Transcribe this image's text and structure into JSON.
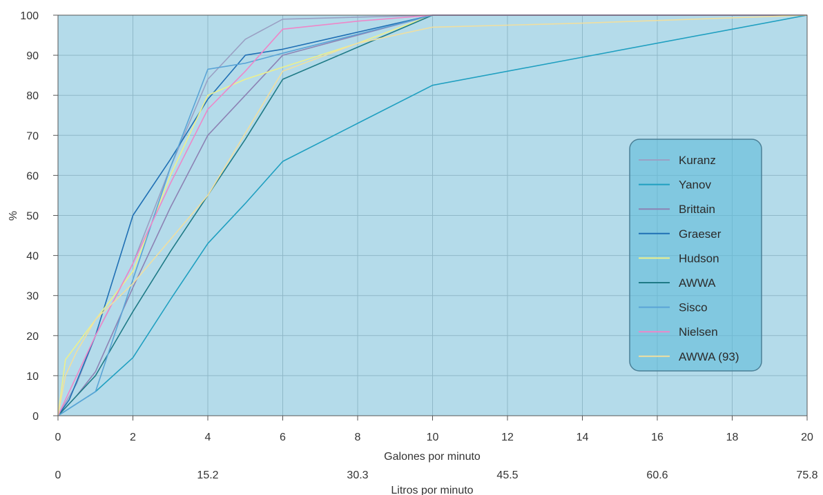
{
  "chart_data": {
    "type": "line",
    "ylabel": "%",
    "xlabel": "Galones por minuto",
    "x2label": "Litros por minuto",
    "xlim": [
      0,
      20
    ],
    "ylim": [
      0,
      100
    ],
    "x_ticks": [
      "0",
      "2",
      "4",
      "6",
      "8",
      "10",
      "12",
      "14",
      "16",
      "18",
      "20"
    ],
    "y_ticks": [
      "0",
      "10",
      "20",
      "30",
      "40",
      "50",
      "60",
      "70",
      "80",
      "90",
      "100"
    ],
    "x2_ticks": [
      {
        "x": 0,
        "label": "0"
      },
      {
        "x": 4,
        "label": "15.2"
      },
      {
        "x": 8,
        "label": "30.3"
      },
      {
        "x": 12,
        "label": "45.5"
      },
      {
        "x": 16,
        "label": "60.6"
      },
      {
        "x": 20,
        "label": "75.8"
      }
    ],
    "grid": true,
    "background": "#b4dbea",
    "legend_position": "right",
    "series": [
      {
        "name": "Kuranz",
        "color": "#9aa0c4",
        "points": [
          [
            0,
            0
          ],
          [
            0.5,
            8
          ],
          [
            1,
            20
          ],
          [
            2,
            38
          ],
          [
            3,
            62
          ],
          [
            4,
            84
          ],
          [
            5,
            94
          ],
          [
            6,
            99
          ],
          [
            10,
            100
          ],
          [
            20,
            100
          ]
        ]
      },
      {
        "name": "Yanov",
        "color": "#1f9fc0",
        "points": [
          [
            0,
            0
          ],
          [
            1,
            6
          ],
          [
            2,
            14.5
          ],
          [
            3,
            29
          ],
          [
            4,
            43
          ],
          [
            5,
            53
          ],
          [
            6,
            63.5
          ],
          [
            8,
            73
          ],
          [
            10,
            82.5
          ],
          [
            14,
            89.5
          ],
          [
            20,
            100
          ]
        ]
      },
      {
        "name": "Brittain",
        "color": "#8c82b4",
        "points": [
          [
            0,
            0
          ],
          [
            0.5,
            5
          ],
          [
            1,
            11
          ],
          [
            2,
            32
          ],
          [
            3,
            52
          ],
          [
            4,
            70
          ],
          [
            5,
            80
          ],
          [
            6,
            90
          ],
          [
            10,
            100
          ],
          [
            20,
            100
          ]
        ]
      },
      {
        "name": "Graeser",
        "color": "#1f6fb4",
        "points": [
          [
            0,
            0
          ],
          [
            0.3,
            4
          ],
          [
            1,
            20
          ],
          [
            2,
            50
          ],
          [
            3,
            64
          ],
          [
            4,
            79
          ],
          [
            5,
            90
          ],
          [
            6,
            91.5
          ],
          [
            10,
            100
          ],
          [
            20,
            100
          ]
        ]
      },
      {
        "name": "Hudson",
        "color": "#eef08a",
        "points": [
          [
            0,
            0
          ],
          [
            0.2,
            14
          ],
          [
            1,
            24
          ],
          [
            2,
            36
          ],
          [
            3,
            60
          ],
          [
            4,
            80
          ],
          [
            5,
            84
          ],
          [
            6,
            87
          ],
          [
            8,
            93
          ],
          [
            10,
            100
          ],
          [
            20,
            100
          ]
        ]
      },
      {
        "name": "AWWA",
        "color": "#1e7a86",
        "points": [
          [
            0,
            0
          ],
          [
            0.5,
            5
          ],
          [
            1,
            10
          ],
          [
            2,
            26
          ],
          [
            3,
            41
          ],
          [
            4,
            55
          ],
          [
            5,
            69
          ],
          [
            6,
            84
          ],
          [
            10,
            100
          ],
          [
            20,
            100
          ]
        ]
      },
      {
        "name": "Sisco",
        "color": "#5aa4d6",
        "points": [
          [
            0,
            0
          ],
          [
            0.5,
            3
          ],
          [
            1,
            6
          ],
          [
            2,
            34
          ],
          [
            3,
            62
          ],
          [
            4,
            86.5
          ],
          [
            5,
            88
          ],
          [
            6,
            90.5
          ],
          [
            10,
            100
          ],
          [
            20,
            100
          ]
        ]
      },
      {
        "name": "Nielsen",
        "color": "#ee86c8",
        "points": [
          [
            0,
            0
          ],
          [
            1,
            20
          ],
          [
            2,
            38
          ],
          [
            3,
            58
          ],
          [
            4,
            76.5
          ],
          [
            5,
            86
          ],
          [
            6,
            96.5
          ],
          [
            8,
            98.5
          ],
          [
            10,
            100
          ],
          [
            20,
            100
          ]
        ]
      },
      {
        "name": "AWWA (93)",
        "color": "#f0dfa0",
        "points": [
          [
            0,
            0
          ],
          [
            0.2,
            10
          ],
          [
            0.5,
            16
          ],
          [
            1,
            24
          ],
          [
            2,
            33
          ],
          [
            3,
            44
          ],
          [
            4,
            55
          ],
          [
            6,
            86
          ],
          [
            8,
            93
          ],
          [
            10,
            97
          ],
          [
            12,
            97.5
          ],
          [
            14,
            98
          ],
          [
            20,
            100
          ]
        ]
      }
    ]
  }
}
